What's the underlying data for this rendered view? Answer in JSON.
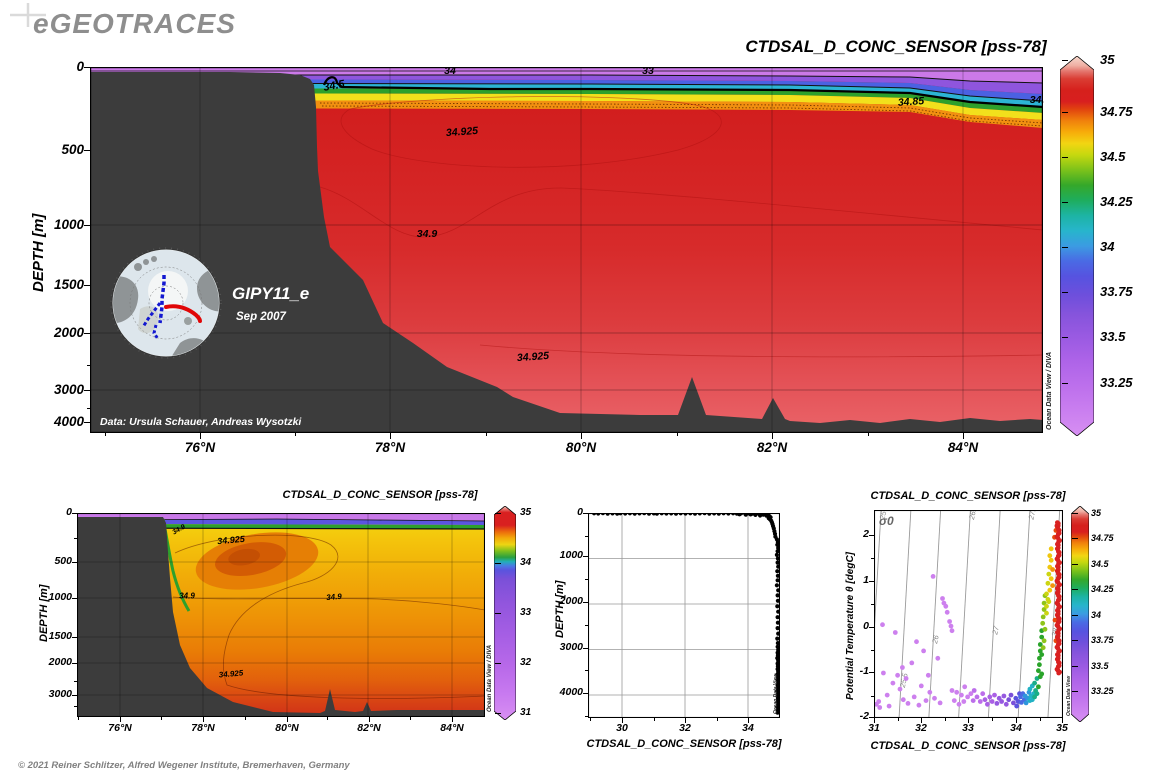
{
  "header": {
    "logo": "eGEOTRACES"
  },
  "inset": {
    "cruise": "GIPY11_e",
    "date": "Sep 2007"
  },
  "footer": {
    "credit": "© 2021 Reiner Schlitzer, Alfred Wegener Institute, Bremerhaven, Germany"
  },
  "chart_data": [
    {
      "id": "main_salinity_section",
      "type": "section-contour",
      "title": "CTDSAL_D_CONC_SENSOR [pss-78]",
      "parameter": "CTDSAL_D_CONC_SENSOR",
      "units": "pss-78",
      "ylabel": "DEPTH [m]",
      "x_ticks": [
        "76°N",
        "78°N",
        "80°N",
        "82°N",
        "84°N"
      ],
      "y_ticks": [
        "0",
        "500",
        "1000",
        "1500",
        "2000",
        "3000",
        "4000"
      ],
      "x_range_deg_n": [
        74.9,
        85.0
      ],
      "y_axis_note": "nonlinear depth axis, 0-4300 m",
      "colorbar_labels": [
        "35",
        "34.75",
        "34.5",
        "34.25",
        "34",
        "33.75",
        "33.5",
        "33.25"
      ],
      "colorbar_range": [
        33.05,
        35
      ],
      "contour_labels": [
        "34",
        "33",
        "34.5",
        "34.85",
        "34.",
        "34.925",
        "34.9",
        "34.925"
      ],
      "cruise": "GIPY11_e",
      "cruise_date": "Sep 2007",
      "data_credit": "Data: Ursula Schauer, Andreas Wysotzki",
      "watermark": "Ocean Data View / DIVA"
    },
    {
      "id": "small_salinity_section",
      "type": "section-contour",
      "title": "CTDSAL_D_CONC_SENSOR [pss-78]",
      "ylabel": "DEPTH [m]",
      "x_ticks": [
        "76°N",
        "78°N",
        "80°N",
        "82°N",
        "84°N"
      ],
      "y_ticks": [
        "0",
        "500",
        "1000",
        "1500",
        "2000",
        "3000"
      ],
      "colorbar_labels": [
        "35",
        "34",
        "33",
        "32",
        "31"
      ],
      "colorbar_range": [
        31,
        35
      ],
      "contour_labels": [
        "34.9",
        "34.925",
        "34.9",
        "34.9",
        "34.925"
      ],
      "watermark": "Ocean Data View / DIVA"
    },
    {
      "id": "depth_profile",
      "type": "scatter",
      "xlabel": "CTDSAL_D_CONC_SENSOR [pss-78]",
      "ylabel": "DEPTH [m]",
      "x_ticks": [
        "30",
        "32",
        "34"
      ],
      "y_ticks": [
        "0",
        "1000",
        "2000",
        "3000",
        "4000"
      ],
      "x_range": [
        28.9,
        35.05
      ],
      "y_range_m": [
        0,
        4550
      ],
      "watermark": "Ocean Data View",
      "points_sal_depth": [
        [
          29.12,
          6
        ],
        [
          29.25,
          12
        ],
        [
          29.4,
          5
        ],
        [
          29.55,
          14
        ],
        [
          29.7,
          8
        ],
        [
          29.85,
          16
        ],
        [
          29.95,
          6
        ],
        [
          30.1,
          11
        ],
        [
          30.25,
          7
        ],
        [
          30.4,
          15
        ],
        [
          30.55,
          9
        ],
        [
          30.7,
          5
        ],
        [
          30.85,
          13
        ],
        [
          31.0,
          8
        ],
        [
          31.1,
          16
        ],
        [
          31.25,
          6
        ],
        [
          31.4,
          12
        ],
        [
          31.55,
          8
        ],
        [
          31.7,
          15
        ],
        [
          31.85,
          7
        ],
        [
          32.0,
          11
        ],
        [
          32.15,
          6
        ],
        [
          32.3,
          14
        ],
        [
          32.45,
          9
        ],
        [
          32.6,
          5
        ],
        [
          32.75,
          13
        ],
        [
          32.9,
          8
        ],
        [
          33.05,
          15
        ],
        [
          33.2,
          7
        ],
        [
          33.35,
          11
        ],
        [
          33.5,
          6
        ],
        [
          33.62,
          14
        ],
        [
          33.75,
          9
        ],
        [
          33.88,
          17
        ],
        [
          34.0,
          8
        ],
        [
          34.1,
          13
        ],
        [
          34.2,
          20
        ],
        [
          34.3,
          10
        ],
        [
          34.4,
          18
        ],
        [
          34.5,
          12
        ],
        [
          33.7,
          28
        ],
        [
          33.9,
          35
        ],
        [
          34.05,
          30
        ],
        [
          34.2,
          42
        ],
        [
          34.35,
          55
        ],
        [
          34.45,
          38
        ],
        [
          34.55,
          60
        ],
        [
          34.6,
          48
        ],
        [
          34.65,
          75
        ],
        [
          34.68,
          95
        ],
        [
          34.6,
          30
        ],
        [
          34.52,
          25
        ],
        [
          34.62,
          115
        ],
        [
          34.66,
          140
        ],
        [
          34.7,
          170
        ],
        [
          34.72,
          205
        ],
        [
          34.74,
          245
        ],
        [
          34.76,
          290
        ],
        [
          34.78,
          340
        ],
        [
          34.8,
          400
        ],
        [
          34.82,
          460
        ],
        [
          34.83,
          520
        ],
        [
          34.88,
          580
        ],
        [
          34.91,
          640
        ],
        [
          34.89,
          700
        ],
        [
          34.92,
          770
        ],
        [
          34.9,
          840
        ],
        [
          34.88,
          920
        ],
        [
          34.91,
          1000
        ],
        [
          34.9,
          1090
        ],
        [
          34.92,
          1180
        ],
        [
          34.89,
          1280
        ],
        [
          34.91,
          1380
        ],
        [
          34.9,
          1480
        ],
        [
          34.88,
          1590
        ],
        [
          34.92,
          1700
        ],
        [
          34.9,
          1810
        ],
        [
          34.91,
          1930
        ],
        [
          34.89,
          2050
        ],
        [
          34.92,
          2170
        ],
        [
          34.9,
          2290
        ],
        [
          34.91,
          2410
        ],
        [
          34.9,
          2530
        ],
        [
          34.92,
          2650
        ],
        [
          34.89,
          2760
        ],
        [
          34.91,
          2860
        ],
        [
          34.9,
          2940
        ],
        [
          34.92,
          3010
        ],
        [
          34.9,
          3070
        ],
        [
          34.91,
          3130
        ],
        [
          34.89,
          3190
        ],
        [
          34.92,
          3250
        ],
        [
          34.9,
          3310
        ],
        [
          34.91,
          3370
        ],
        [
          34.9,
          3430
        ],
        [
          34.92,
          3490
        ],
        [
          34.89,
          3550
        ],
        [
          34.91,
          3610
        ],
        [
          34.9,
          3670
        ],
        [
          34.92,
          3730
        ],
        [
          34.9,
          3790
        ],
        [
          34.91,
          3850
        ],
        [
          34.89,
          3910
        ],
        [
          34.92,
          3970
        ],
        [
          34.9,
          4030
        ],
        [
          34.91,
          4090
        ],
        [
          34.9,
          4150
        ],
        [
          34.92,
          4210
        ],
        [
          34.89,
          4270
        ],
        [
          34.91,
          4330
        ],
        [
          34.9,
          4390
        ]
      ]
    },
    {
      "id": "ts_diagram",
      "type": "scatter",
      "title": "CTDSAL_D_CONC_SENSOR [pss-78]",
      "xlabel": "CTDSAL_D_CONC_SENSOR [pss-78]",
      "ylabel": "Potential Temperature θ [degC]",
      "x_ticks": [
        "31",
        "32",
        "33",
        "34",
        "35"
      ],
      "y_ticks": [
        "2",
        "1",
        "0",
        "-1",
        "-2"
      ],
      "sigma_label": "σ0",
      "sigma_isolines": [
        25,
        25.5,
        26,
        26.5,
        27,
        27.5,
        28
      ],
      "sigma_isoline_labels": [
        "25",
        "25.5",
        "26",
        "26.5",
        "27",
        "27.5",
        "28"
      ],
      "colorbar_labels": [
        "35",
        "34.75",
        "34.5",
        "34.25",
        "34",
        "33.75",
        "33.5",
        "33.25"
      ],
      "watermark": "Ocean Data View",
      "points_sal_theta": [
        [
          31.05,
          -1.68
        ],
        [
          31.1,
          -1.62
        ],
        [
          31.12,
          -1.75
        ],
        [
          31.18,
          0.05
        ],
        [
          31.2,
          -1.0
        ],
        [
          31.28,
          -1.48
        ],
        [
          31.32,
          -1.72
        ],
        [
          31.4,
          -1.22
        ],
        [
          31.45,
          -0.12
        ],
        [
          31.5,
          -1.05
        ],
        [
          31.55,
          -1.35
        ],
        [
          31.6,
          -0.88
        ],
        [
          31.62,
          -1.58
        ],
        [
          31.68,
          -1.12
        ],
        [
          31.72,
          -1.66
        ],
        [
          31.8,
          -0.78
        ],
        [
          31.85,
          -1.52
        ],
        [
          31.9,
          -0.32
        ],
        [
          31.95,
          -1.7
        ],
        [
          32.0,
          -1.28
        ],
        [
          32.05,
          -0.52
        ],
        [
          32.1,
          -1.6
        ],
        [
          32.15,
          -1.05
        ],
        [
          32.18,
          -1.42
        ],
        [
          32.25,
          1.1
        ],
        [
          32.28,
          -1.55
        ],
        [
          32.35,
          -0.68
        ],
        [
          32.4,
          -1.65
        ],
        [
          32.45,
          0.62
        ],
        [
          32.48,
          0.52
        ],
        [
          32.52,
          0.45
        ],
        [
          32.55,
          0.32
        ],
        [
          32.6,
          0.12
        ],
        [
          32.63,
          0.02
        ],
        [
          32.65,
          -0.08
        ],
        [
          32.65,
          -1.38
        ],
        [
          32.7,
          -1.6
        ],
        [
          32.75,
          -1.42
        ],
        [
          32.8,
          -1.68
        ],
        [
          32.85,
          -1.48
        ],
        [
          32.9,
          -1.62
        ],
        [
          32.92,
          -1.3
        ],
        [
          32.98,
          -1.52
        ],
        [
          33.05,
          -1.45
        ],
        [
          33.1,
          -1.6
        ],
        [
          33.12,
          -1.38
        ],
        [
          33.18,
          -1.52
        ],
        [
          33.25,
          -1.62
        ],
        [
          33.3,
          -1.45
        ],
        [
          33.35,
          -1.58
        ],
        [
          33.4,
          -1.68
        ],
        [
          33.45,
          -1.52
        ],
        [
          33.5,
          -1.62
        ],
        [
          33.55,
          -1.48
        ],
        [
          33.6,
          -1.66
        ],
        [
          33.65,
          -1.55
        ],
        [
          33.7,
          -1.62
        ],
        [
          33.75,
          -1.5
        ],
        [
          33.8,
          -1.68
        ],
        [
          33.85,
          -1.58
        ],
        [
          33.9,
          -1.48
        ],
        [
          33.95,
          -1.65
        ],
        [
          34.0,
          -1.55
        ],
        [
          34.02,
          -1.72
        ],
        [
          34.05,
          -1.62
        ],
        [
          34.08,
          -1.45
        ],
        [
          34.1,
          -1.52
        ],
        [
          34.12,
          -1.64
        ],
        [
          34.15,
          -1.45
        ],
        [
          34.18,
          -1.58
        ],
        [
          34.2,
          -1.5
        ],
        [
          34.22,
          -1.65
        ],
        [
          34.25,
          -1.55
        ],
        [
          34.28,
          -1.42
        ],
        [
          34.3,
          -1.6
        ],
        [
          34.3,
          -1.35
        ],
        [
          34.32,
          -1.5
        ],
        [
          34.35,
          -1.58
        ],
        [
          34.35,
          -1.28
        ],
        [
          34.38,
          -1.45
        ],
        [
          34.4,
          -1.52
        ],
        [
          34.4,
          -1.22
        ],
        [
          34.42,
          -1.38
        ],
        [
          34.45,
          -1.45
        ],
        [
          34.45,
          -1.12
        ],
        [
          34.48,
          -1.3
        ],
        [
          34.48,
          -0.95
        ],
        [
          34.5,
          -0.82
        ],
        [
          34.5,
          -0.68
        ],
        [
          34.52,
          -0.52
        ],
        [
          34.52,
          -0.38
        ],
        [
          34.55,
          -0.22
        ],
        [
          34.55,
          -0.08
        ],
        [
          34.57,
          0.08
        ],
        [
          34.58,
          0.22
        ],
        [
          34.6,
          0.38
        ],
        [
          34.6,
          0.52
        ],
        [
          34.62,
          0.68
        ],
        [
          34.58,
          -0.45
        ],
        [
          34.55,
          -0.6
        ],
        [
          34.6,
          -0.3
        ],
        [
          34.62,
          -0.05
        ],
        [
          34.55,
          -1.02
        ],
        [
          34.52,
          -1.08
        ],
        [
          34.65,
          0.45
        ],
        [
          34.65,
          0.72
        ],
        [
          34.68,
          0.95
        ],
        [
          34.7,
          1.15
        ],
        [
          34.7,
          0.55
        ],
        [
          34.72,
          1.3
        ],
        [
          34.72,
          0.8
        ],
        [
          34.75,
          1.45
        ],
        [
          34.75,
          1.05
        ],
        [
          34.78,
          0.9
        ],
        [
          34.78,
          1.25
        ],
        [
          34.65,
          0.3
        ],
        [
          34.68,
          0.6
        ],
        [
          34.72,
          1.55
        ],
        [
          34.75,
          1.7
        ],
        [
          34.82,
          1.95
        ],
        [
          34.85,
          2.1
        ],
        [
          34.87,
          2.2
        ],
        [
          34.85,
          -0.3
        ],
        [
          34.83,
          0.15
        ]
      ],
      "red_column_points": [
        [
          34.9,
          2.25
        ],
        [
          34.88,
          2.18
        ],
        [
          34.92,
          2.1
        ],
        [
          34.9,
          2.02
        ],
        [
          34.89,
          1.94
        ],
        [
          34.91,
          1.86
        ],
        [
          34.9,
          1.78
        ],
        [
          34.88,
          1.7
        ],
        [
          34.92,
          1.62
        ],
        [
          34.9,
          1.54
        ],
        [
          34.89,
          1.46
        ],
        [
          34.91,
          1.38
        ],
        [
          34.9,
          1.3
        ],
        [
          34.88,
          1.22
        ],
        [
          34.92,
          1.14
        ],
        [
          34.9,
          1.06
        ],
        [
          34.89,
          0.98
        ],
        [
          34.91,
          0.9
        ],
        [
          34.9,
          0.82
        ],
        [
          34.88,
          0.74
        ],
        [
          34.92,
          0.66
        ],
        [
          34.9,
          0.58
        ],
        [
          34.89,
          0.5
        ],
        [
          34.91,
          0.42
        ],
        [
          34.9,
          0.34
        ],
        [
          34.88,
          0.26
        ],
        [
          34.92,
          0.18
        ],
        [
          34.9,
          0.1
        ],
        [
          34.89,
          0.02
        ],
        [
          34.91,
          -0.06
        ],
        [
          34.9,
          -0.14
        ],
        [
          34.88,
          -0.22
        ],
        [
          34.92,
          -0.3
        ],
        [
          34.9,
          -0.38
        ],
        [
          34.89,
          -0.46
        ],
        [
          34.91,
          -0.54
        ],
        [
          34.9,
          -0.62
        ],
        [
          34.88,
          -0.7
        ],
        [
          34.92,
          -0.78
        ],
        [
          34.9,
          -0.86
        ],
        [
          34.89,
          -0.94
        ],
        [
          34.91,
          -1.0
        ]
      ]
    }
  ]
}
